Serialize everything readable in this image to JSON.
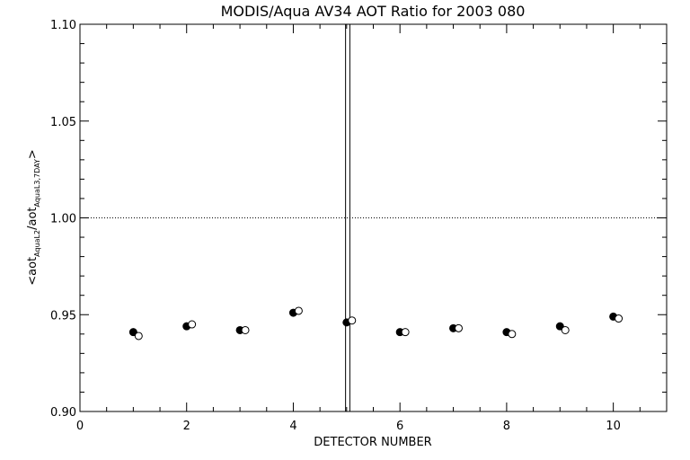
{
  "chart_data": {
    "type": "scatter",
    "title": "MODIS/Aqua AV34 AOT Ratio for 2003 080",
    "xlabel": "DETECTOR NUMBER",
    "ylabel": {
      "prefix": "<aot",
      "sub1": "AquaL2",
      "mid": "/aot",
      "sub2": "AquaL3,7DAY",
      "suffix": ">"
    },
    "xlim": [
      0,
      11
    ],
    "ylim": [
      0.9,
      1.1
    ],
    "x_ticks": [
      0,
      2,
      4,
      6,
      8,
      10
    ],
    "x_tick_labels": [
      "0",
      "2",
      "4",
      "6",
      "8",
      "10"
    ],
    "y_ticks": [
      0.9,
      0.95,
      1.0,
      1.05,
      1.1
    ],
    "y_tick_labels": [
      "0.90",
      "0.95",
      "1.00",
      "1.05",
      "1.10"
    ],
    "reference_line": {
      "y": 1.0,
      "style": "dotted"
    },
    "vertical_lines": [
      4.98,
      5.06
    ],
    "grid": false,
    "series": [
      {
        "marker": "filled-circle",
        "x": [
          1,
          2,
          3,
          4,
          5,
          6,
          7,
          8,
          9,
          10
        ],
        "y": [
          0.941,
          0.944,
          0.942,
          0.951,
          0.946,
          0.941,
          0.943,
          0.941,
          0.944,
          0.949
        ]
      },
      {
        "marker": "open-circle",
        "x": [
          1.1,
          2.1,
          3.1,
          4.1,
          5.1,
          6.1,
          7.1,
          8.1,
          9.1,
          10.1
        ],
        "y": [
          0.939,
          0.945,
          0.942,
          0.952,
          0.947,
          0.941,
          0.943,
          0.94,
          0.942,
          0.948
        ]
      }
    ]
  }
}
